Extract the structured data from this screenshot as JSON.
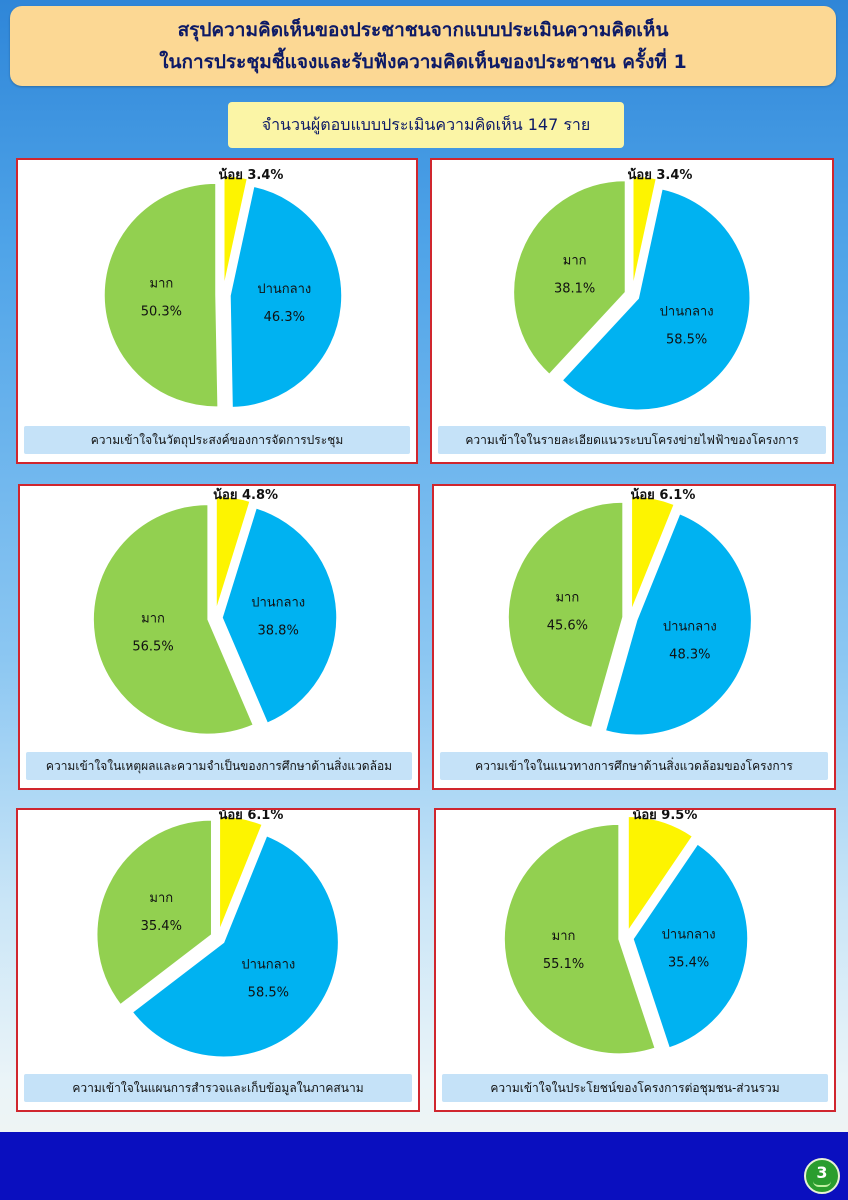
{
  "header": {
    "title_line1": "สรุปความคิดเห็นของประชาชนจากแบบประเมินความคิดเห็น",
    "title_line2": "ในการประชุมชี้แจงและรับฟังความคิดเห็นของประชาชน ครั้งที่ 1",
    "respondents": "จำนวนผู้ตอบแบบประเมินความคิดเห็น 147 ราย"
  },
  "colors": {
    "little": "#fdf400",
    "moderate": "#00b2f1",
    "much": "#92d050"
  },
  "chart_data": [
    {
      "type": "pie",
      "title": "ความเข้าใจในวัตถุประสงค์ของการจัดการประชุม",
      "categories": [
        "น้อย",
        "ปานกลาง",
        "มาก"
      ],
      "values": [
        3.4,
        46.3,
        50.3
      ],
      "labels": [
        "น้อย 3.4%",
        "46.3%",
        "50.3%"
      ]
    },
    {
      "type": "pie",
      "title": "ความเข้าใจในรายละเอียดแนวระบบโครงข่ายไฟฟ้าของโครงการ",
      "categories": [
        "น้อย",
        "ปานกลาง",
        "มาก"
      ],
      "values": [
        3.4,
        58.5,
        38.1
      ],
      "labels": [
        "น้อย 3.4%",
        "58.5%",
        "38.1%"
      ]
    },
    {
      "type": "pie",
      "title": "ความเข้าใจในเหตุผลและความจำเป็นของการศึกษาด้านสิ่งแวดล้อม",
      "categories": [
        "น้อย",
        "ปานกลาง",
        "มาก"
      ],
      "values": [
        4.8,
        38.8,
        56.5
      ],
      "labels": [
        "น้อย 4.8%",
        "38.8%",
        "56.5%"
      ]
    },
    {
      "type": "pie",
      "title": "ความเข้าใจในแนวทางการศึกษาด้านสิ่งแวดล้อมของโครงการ",
      "categories": [
        "น้อย",
        "ปานกลาง",
        "มาก"
      ],
      "values": [
        6.1,
        48.3,
        45.6
      ],
      "labels": [
        "น้อย 6.1%",
        "48.3%",
        "45.6%"
      ]
    },
    {
      "type": "pie",
      "title": "ความเข้าใจในแผนการสำรวจและเก็บข้อมูลในภาคสนาม",
      "categories": [
        "น้อย",
        "ปานกลาง",
        "มาก"
      ],
      "values": [
        6.1,
        58.5,
        35.4
      ],
      "labels": [
        "น้อย 6.1%",
        "58.5%",
        "35.4%"
      ]
    },
    {
      "type": "pie",
      "title": "ความเข้าใจในประโยชน์ของโครงการต่อชุมชน-ส่วนรวม",
      "categories": [
        "น้อย",
        "ปานกลาง",
        "มาก"
      ],
      "values": [
        9.5,
        35.4,
        55.1
      ],
      "labels": [
        "น้อย 9.5%",
        "35.4%",
        "55.1%"
      ]
    }
  ],
  "footer": {
    "page_number": "3"
  }
}
